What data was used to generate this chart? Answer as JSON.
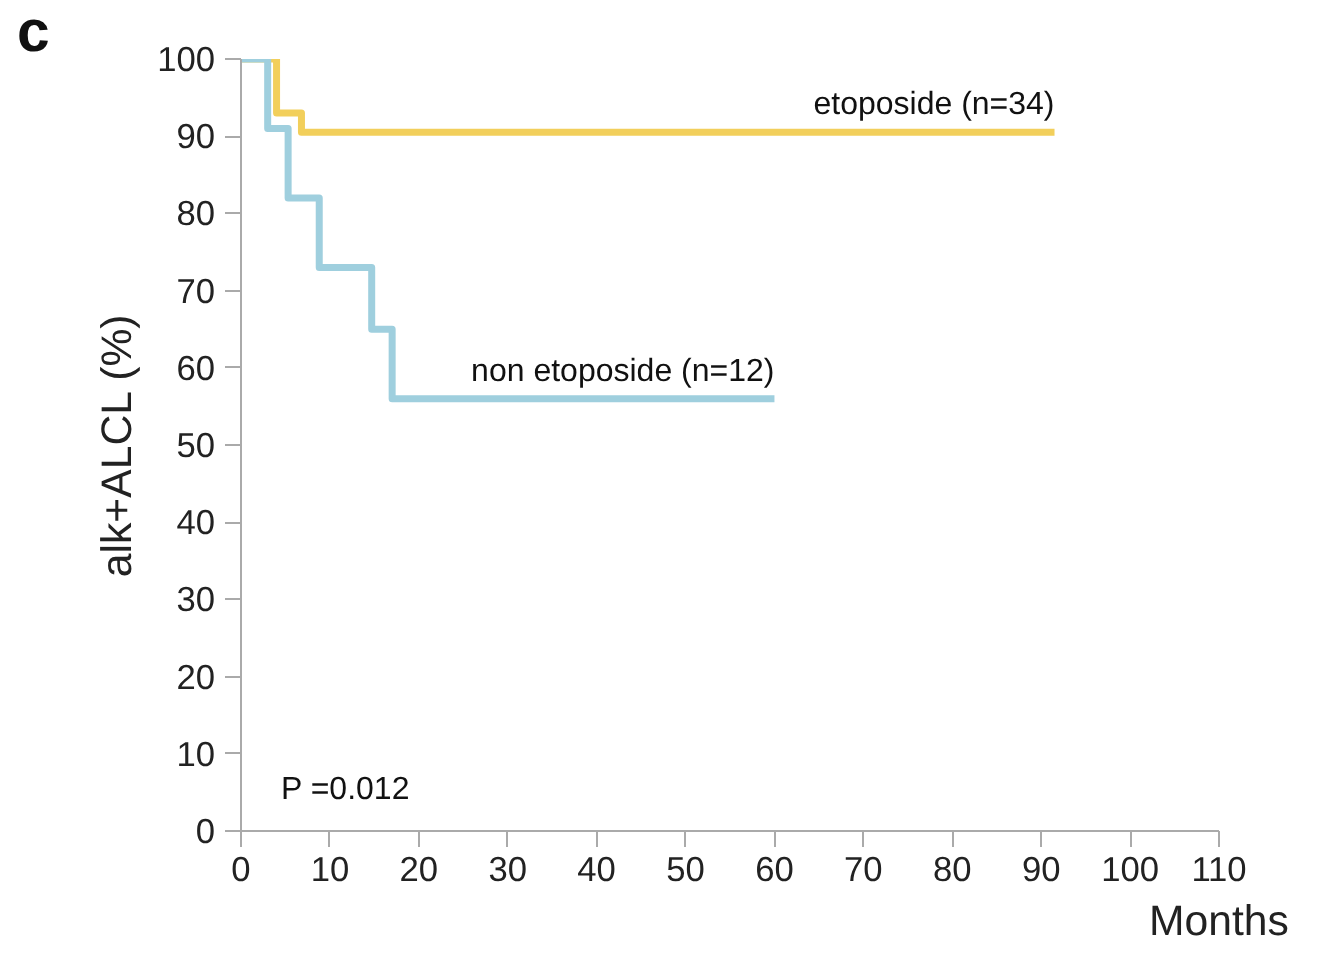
{
  "chart_data": {
    "type": "step",
    "xlabel": "Months",
    "ylabel": "alk+ALCL (%)",
    "xlim": [
      0,
      110
    ],
    "ylim": [
      0,
      100
    ],
    "xticks": [
      0,
      10,
      20,
      30,
      40,
      50,
      60,
      70,
      80,
      90,
      100,
      110
    ],
    "yticks": [
      0,
      10,
      20,
      30,
      40,
      50,
      60,
      70,
      80,
      90,
      100
    ],
    "grid": false,
    "marker": "none",
    "line_style": "solid",
    "series": [
      {
        "name": "etoposide (n=34)",
        "color": "#f2cf5b",
        "x": [
          0,
          4,
          6.8,
          91.5
        ],
        "values": [
          100,
          93,
          90.5,
          90.5
        ]
      },
      {
        "name": "non etoposide (n=12)",
        "color": "#9fcfde",
        "x": [
          0,
          3,
          5.3,
          8.8,
          14.7,
          17,
          60
        ],
        "values": [
          100,
          91,
          82,
          73,
          65,
          56,
          56
        ]
      }
    ],
    "annotations": [
      "c",
      "P =0.012"
    ]
  }
}
